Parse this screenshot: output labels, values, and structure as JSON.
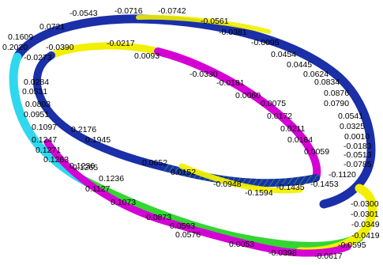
{
  "colors": {
    "blue": "#1a2fa8",
    "magenta": "#d400d4",
    "yellow": "#f2f000",
    "green": "#33d633",
    "cyan": "#2fd8ee",
    "background": "#ffffff"
  },
  "labels": [
    {
      "id": "l1",
      "text": "-0.0543"
    },
    {
      "id": "l2",
      "text": "-0.0716"
    },
    {
      "id": "l3",
      "text": "-0.0742"
    },
    {
      "id": "l4",
      "text": "0.0721"
    },
    {
      "id": "l5",
      "text": "-0.0561"
    },
    {
      "id": "l6",
      "text": "0.1609"
    },
    {
      "id": "l7",
      "text": "-0.0381"
    },
    {
      "id": "l8",
      "text": "0.2020"
    },
    {
      "id": "l9",
      "text": "-0.0390"
    },
    {
      "id": "l10",
      "text": "-0.0217"
    },
    {
      "id": "l11",
      "text": "-0.0095"
    },
    {
      "id": "l12",
      "text": "-0.0273"
    },
    {
      "id": "l13",
      "text": "0.0093"
    },
    {
      "id": "l14",
      "text": "0.0454"
    },
    {
      "id": "l15",
      "text": "0.0445"
    },
    {
      "id": "l16",
      "text": "0.0624"
    },
    {
      "id": "l17",
      "text": "0.0834"
    },
    {
      "id": "l18",
      "text": "-0.0330"
    },
    {
      "id": "l19",
      "text": "0.0284"
    },
    {
      "id": "l20",
      "text": "-0.0181"
    },
    {
      "id": "l21",
      "text": "0.0876"
    },
    {
      "id": "l22",
      "text": "0.0531"
    },
    {
      "id": "l23",
      "text": "0.0060"
    },
    {
      "id": "l24",
      "text": "0.0790"
    },
    {
      "id": "l25",
      "text": "0.0803"
    },
    {
      "id": "l26",
      "text": "0.0075"
    },
    {
      "id": "l27",
      "text": "0.0951"
    },
    {
      "id": "l28",
      "text": "0.0172"
    },
    {
      "id": "l29",
      "text": "0.0541"
    },
    {
      "id": "l30",
      "text": "0.0325"
    },
    {
      "id": "l31",
      "text": "0.1097"
    },
    {
      "id": "l32",
      "text": "0.0211"
    },
    {
      "id": "l33",
      "text": "0.2176"
    },
    {
      "id": "l34",
      "text": "0.0010"
    },
    {
      "id": "l35",
      "text": "0.1247"
    },
    {
      "id": "l36",
      "text": "0.0164"
    },
    {
      "id": "l37",
      "text": "-0.0183"
    },
    {
      "id": "l38",
      "text": "0.1945"
    },
    {
      "id": "l39",
      "text": "0.1271"
    },
    {
      "id": "l40",
      "text": "0.0059"
    },
    {
      "id": "l41",
      "text": "-0.0513"
    },
    {
      "id": "l42",
      "text": "0.1263"
    },
    {
      "id": "l43",
      "text": "-0.0785"
    },
    {
      "id": "l44",
      "text": "0.1265"
    },
    {
      "id": "l45",
      "text": "0.0652"
    },
    {
      "id": "l46",
      "text": "0.1236"
    },
    {
      "id": "l47",
      "text": "0.0152"
    },
    {
      "id": "l48",
      "text": "-0.1120"
    },
    {
      "id": "l49",
      "text": "-0.0948"
    },
    {
      "id": "l50",
      "text": "-0.1435"
    },
    {
      "id": "l51",
      "text": "-0.1453"
    },
    {
      "id": "l52",
      "text": "0.1236"
    },
    {
      "id": "l53",
      "text": "-0.1594"
    },
    {
      "id": "l54",
      "text": "0.1127"
    },
    {
      "id": "l55",
      "text": "-0.0300"
    },
    {
      "id": "l56",
      "text": "0.1073"
    },
    {
      "id": "l57",
      "text": "-0.0301"
    },
    {
      "id": "l58",
      "text": "-0.0349"
    },
    {
      "id": "l59",
      "text": "0.0873"
    },
    {
      "id": "l60",
      "text": "0.0593"
    },
    {
      "id": "l61",
      "text": "-0.0419"
    },
    {
      "id": "l62",
      "text": "0.0576"
    },
    {
      "id": "l63",
      "text": "-0.0595"
    },
    {
      "id": "l64",
      "text": "0.0053"
    },
    {
      "id": "l65",
      "text": "-0.0398"
    },
    {
      "id": "l66",
      "text": "-0.0617"
    }
  ]
}
